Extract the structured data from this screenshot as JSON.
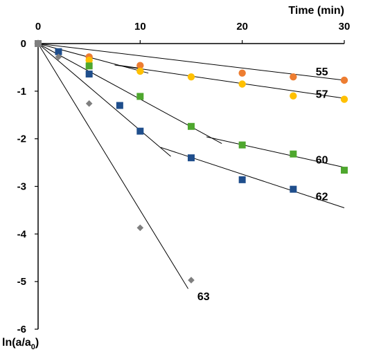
{
  "chart_data": {
    "type": "scatter",
    "xlabel": "Time (min)",
    "ylabel_main": "ln(a/a",
    "ylabel_sub": "0",
    "ylabel_close": ")",
    "xlim": [
      0,
      30
    ],
    "ylim": [
      -6,
      0
    ],
    "x_ticks": [
      0,
      10,
      20,
      30
    ],
    "y_ticks": [
      0,
      -1,
      -2,
      -3,
      -4,
      -5,
      -6
    ],
    "grid": false,
    "series": [
      {
        "name": "55",
        "marker": "circle",
        "color": "#ED7D31",
        "points": [
          [
            0,
            0
          ],
          [
            5,
            -0.28
          ],
          [
            10,
            -0.46
          ],
          [
            20,
            -0.62
          ],
          [
            25,
            -0.7
          ],
          [
            30,
            -0.77
          ]
        ],
        "fit_lines": [
          [
            [
              0,
              0
            ],
            [
              30,
              -0.77
            ]
          ],
          [
            [
              8,
              -0.46
            ],
            [
              10,
              -0.52
            ]
          ]
        ],
        "label_pos": [
          27.2,
          -0.58
        ]
      },
      {
        "name": "57",
        "marker": "circle",
        "color": "#FFC000",
        "points": [
          [
            0,
            0
          ],
          [
            5,
            -0.35
          ],
          [
            10,
            -0.58
          ],
          [
            15,
            -0.7
          ],
          [
            20,
            -0.85
          ],
          [
            25,
            -1.1
          ],
          [
            30,
            -1.17
          ]
        ],
        "fit_lines": [
          [
            [
              0,
              0
            ],
            [
              10.8,
              -0.62
            ]
          ],
          [
            [
              7.5,
              -0.45
            ],
            [
              30,
              -1.15
            ]
          ]
        ],
        "label_pos": [
          27.2,
          -1.05
        ]
      },
      {
        "name": "60",
        "marker": "square",
        "color": "#4EA72E",
        "points": [
          [
            0,
            0
          ],
          [
            5,
            -0.47
          ],
          [
            10,
            -1.11
          ],
          [
            15,
            -1.74
          ],
          [
            20,
            -2.13
          ],
          [
            25,
            -2.32
          ],
          [
            30,
            -2.66
          ]
        ],
        "fit_lines": [
          [
            [
              0,
              0
            ],
            [
              18,
              -2.1
            ]
          ],
          [
            [
              16.5,
              -1.96
            ],
            [
              30,
              -2.6
            ]
          ]
        ],
        "label_pos": [
          27.2,
          -2.43
        ]
      },
      {
        "name": "62",
        "marker": "square",
        "color": "#1F4E8C",
        "points": [
          [
            0,
            0
          ],
          [
            2,
            -0.17
          ],
          [
            5,
            -0.64
          ],
          [
            8,
            -1.3
          ],
          [
            10,
            -1.84
          ],
          [
            15,
            -2.4
          ],
          [
            20,
            -2.86
          ],
          [
            25,
            -3.06
          ]
        ],
        "fit_lines": [
          [
            [
              0,
              0
            ],
            [
              13,
              -2.37
            ]
          ],
          [
            [
              12,
              -2.18
            ],
            [
              30,
              -3.45
            ]
          ]
        ],
        "label_pos": [
          27.2,
          -3.2
        ]
      },
      {
        "name": "63",
        "marker": "diamond",
        "color": "#7F7F7F",
        "points": [
          [
            0,
            0
          ],
          [
            2,
            -0.28
          ],
          [
            5,
            -1.26
          ],
          [
            10,
            -3.87
          ],
          [
            15,
            -4.97
          ]
        ],
        "fit_lines": [
          [
            [
              0,
              0
            ],
            [
              14.7,
              -5.15
            ]
          ]
        ],
        "label_pos": [
          15.6,
          -5.3
        ]
      }
    ]
  }
}
